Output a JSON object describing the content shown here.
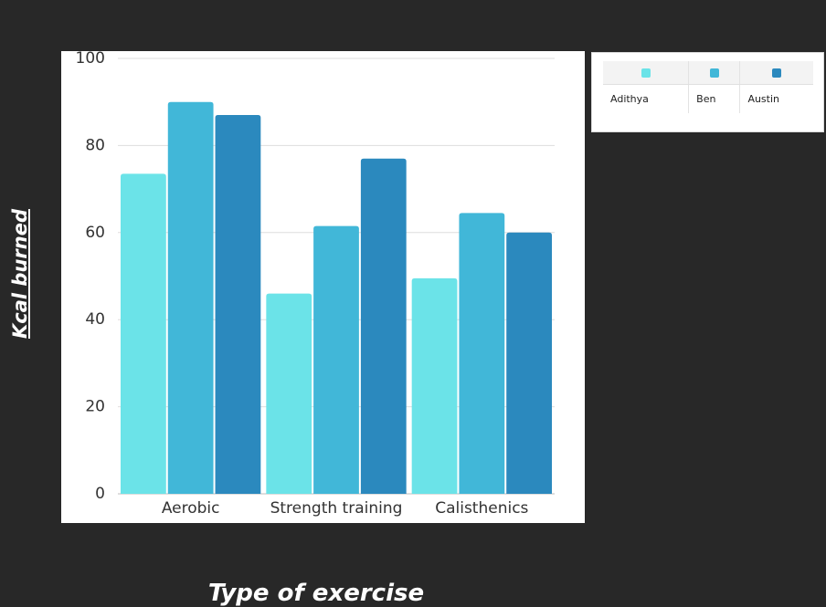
{
  "chart_data": {
    "type": "bar",
    "categories": [
      "Aerobic",
      "Strength training",
      "Calisthenics"
    ],
    "series": [
      {
        "name": "Adithya",
        "color": "#6be3e8",
        "values": [
          73.5,
          46,
          49.5
        ]
      },
      {
        "name": "Ben",
        "color": "#41b7d8",
        "values": [
          90,
          61.5,
          64.5
        ]
      },
      {
        "name": "Austin",
        "color": "#2b89be",
        "values": [
          87,
          77,
          60
        ]
      }
    ],
    "xlabel": "Type of exercise",
    "ylabel": "Kcal burned",
    "ylim": [
      0,
      100
    ],
    "yticks": [
      0,
      20,
      40,
      60,
      80,
      100
    ],
    "grid": true,
    "legend_position": "top-right"
  }
}
